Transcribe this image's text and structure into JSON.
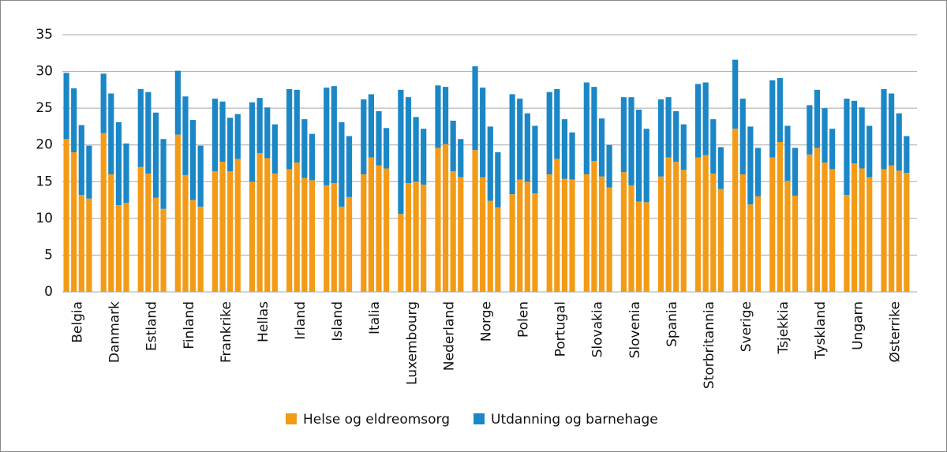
{
  "chart_data": {
    "type": "stacked_bar",
    "categories": [
      "Belgia",
      null,
      null,
      null,
      "Danmark",
      null,
      null,
      null,
      "Estland",
      null,
      null,
      null,
      "Finland",
      null,
      null,
      null,
      "Frankrike",
      null,
      null,
      null,
      "Hellas",
      null,
      null,
      null,
      "Irland",
      null,
      null,
      null,
      "Island",
      null,
      null,
      null,
      "Italia",
      null,
      null,
      null,
      "Luxembourg",
      null,
      null,
      null,
      "Nederland",
      null,
      null,
      null,
      "Norge",
      null,
      null,
      null,
      "Polen",
      null,
      null,
      null,
      "Portugal",
      null,
      null,
      null,
      "Slovakia",
      null,
      null,
      null,
      "Slovenia",
      null,
      null,
      null,
      "Spania",
      null,
      null,
      null,
      "Storbritannia",
      null,
      null,
      null,
      "Sverige",
      null,
      null,
      null,
      "Tsjekkia",
      null,
      null,
      null,
      "Tyskland",
      null,
      null,
      null,
      "Ungarn",
      null,
      null,
      null,
      "Østerrike",
      null,
      null,
      null
    ],
    "series": [
      {
        "name": "Helse og eldreomsorg",
        "color": "#f39b17",
        "values": [
          20.8,
          19.0,
          13.2,
          12.7,
          21.6,
          16.0,
          11.8,
          12.1,
          17.0,
          16.1,
          12.8,
          11.3,
          21.4,
          15.9,
          12.5,
          11.6,
          16.4,
          17.7,
          16.4,
          18.1,
          15.0,
          18.9,
          18.2,
          16.1,
          16.7,
          17.6,
          15.5,
          15.2,
          14.5,
          14.8,
          11.6,
          12.9,
          16.0,
          18.3,
          17.2,
          16.8,
          10.6,
          14.8,
          15.0,
          14.6,
          19.6,
          20.1,
          16.4,
          15.6,
          19.3,
          15.6,
          12.4,
          11.5,
          13.3,
          15.3,
          15.0,
          13.4,
          16.0,
          18.1,
          15.4,
          15.3,
          16.0,
          17.8,
          15.7,
          14.2,
          16.3,
          14.5,
          12.3,
          12.2,
          15.7,
          18.3,
          17.7,
          16.6,
          18.3,
          18.6,
          16.1,
          14.0,
          22.2,
          16.0,
          11.9,
          13.0,
          18.3,
          20.4,
          15.1,
          13.1,
          18.7,
          19.6,
          17.6,
          16.7,
          13.2,
          17.5,
          16.8,
          15.6,
          16.7,
          17.2,
          16.5,
          16.2
        ]
      },
      {
        "name": "Utdanning og barnehage",
        "color": "#1b87c6",
        "values": [
          9.0,
          8.7,
          9.5,
          7.2,
          8.1,
          11.0,
          11.3,
          8.1,
          10.6,
          11.1,
          11.6,
          9.5,
          8.7,
          10.7,
          10.9,
          8.3,
          9.9,
          8.2,
          7.3,
          6.1,
          10.8,
          7.5,
          6.9,
          6.7,
          10.9,
          9.9,
          8.0,
          6.3,
          13.3,
          13.2,
          11.5,
          8.3,
          10.2,
          8.6,
          7.4,
          5.5,
          16.9,
          11.7,
          8.8,
          7.6,
          8.5,
          7.8,
          6.9,
          5.2,
          11.4,
          12.2,
          10.1,
          7.5,
          13.6,
          11.0,
          9.3,
          9.2,
          11.2,
          9.5,
          8.1,
          6.4,
          12.5,
          10.1,
          7.9,
          5.8,
          10.2,
          12.0,
          12.5,
          10.0,
          10.5,
          8.2,
          6.9,
          6.2,
          10.0,
          9.9,
          7.4,
          5.7,
          9.4,
          10.3,
          10.6,
          6.6,
          10.5,
          8.7,
          7.5,
          6.5,
          6.7,
          7.9,
          7.4,
          5.5,
          13.1,
          8.5,
          8.3,
          7.0,
          10.9,
          9.8,
          7.8,
          5.0
        ]
      }
    ],
    "ylim": [
      0,
      35
    ],
    "yticks": [
      0,
      5,
      10,
      15,
      20,
      25,
      30,
      35
    ],
    "grid": true
  }
}
